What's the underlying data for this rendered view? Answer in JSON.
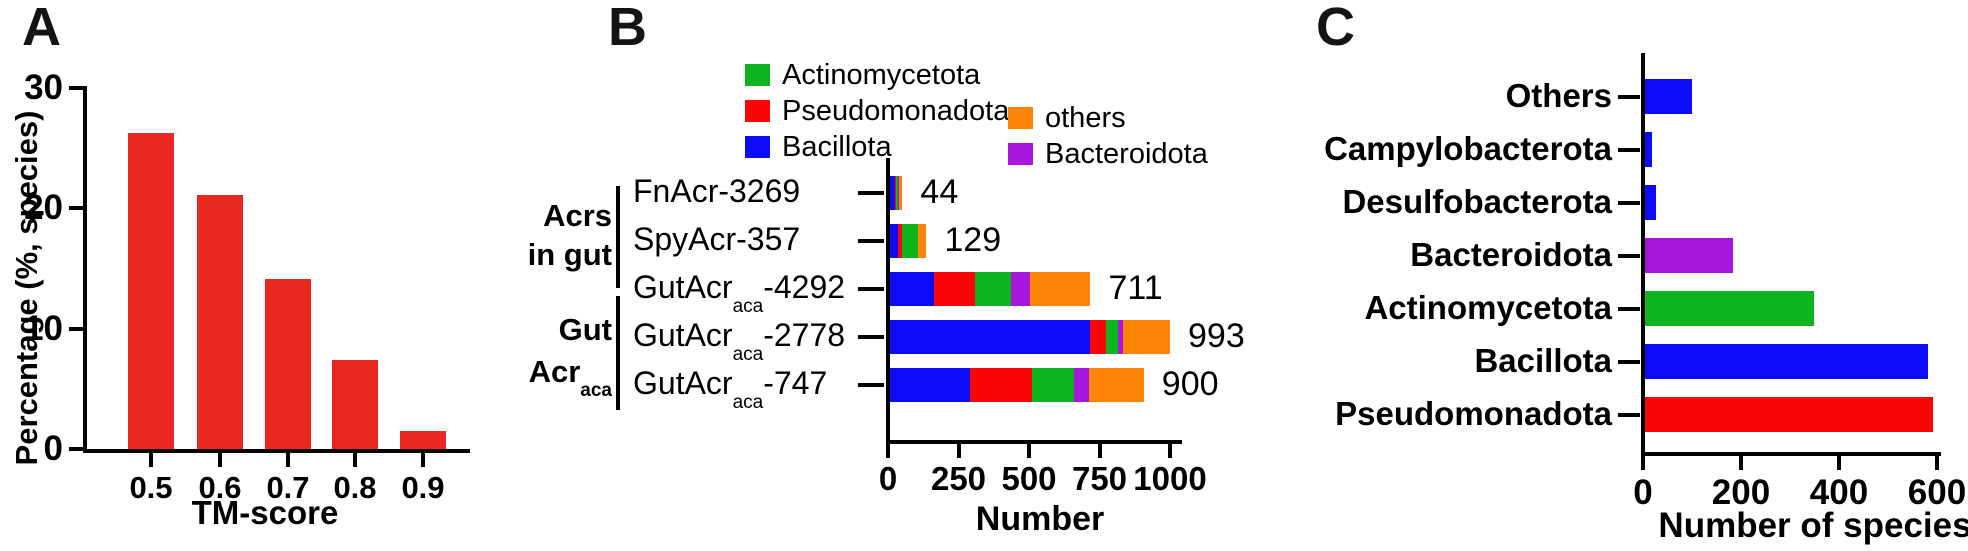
{
  "colors": {
    "blue": "#0b0bf7",
    "red": "#fa0505",
    "green": "#0db41e",
    "orange": "#fb8405",
    "purple": "#a816dd",
    "panel_a_red": "#e8281e",
    "axis": "#000000"
  },
  "chart_data": [
    {
      "panel_letter": "A",
      "type": "bar",
      "title": "",
      "xlabel": "TM-score",
      "ylabel": "Percentage (%, species)",
      "categories": [
        "0.5",
        "0.6",
        "0.7",
        "0.8",
        "0.9"
      ],
      "values": [
        26.3,
        21.1,
        14.1,
        7.4,
        1.5
      ],
      "yticks": [
        0,
        10,
        20,
        30
      ],
      "ylim": [
        0,
        30
      ],
      "bar_color": "#e8281e",
      "grid": false,
      "legend": "none"
    },
    {
      "panel_letter": "B",
      "type": "stacked-bar-horizontal",
      "title": "",
      "xlabel": "Number",
      "xticks": [
        0,
        250,
        500,
        750,
        1000
      ],
      "xlim": [
        0,
        1000
      ],
      "grid": false,
      "legend_position": "top",
      "legend": {
        "col1": [
          {
            "label": "Actinomycetota",
            "color": "#0db41e"
          },
          {
            "label": "Pseudomonadota",
            "color": "#fa0505"
          },
          {
            "label": "Bacillota",
            "color": "#0b0bf7"
          }
        ],
        "col2": [
          {
            "label": "others",
            "color": "#fb8405"
          },
          {
            "label": "Bacteroidota",
            "color": "#a816dd"
          }
        ]
      },
      "rows": [
        {
          "label_pre": "FnAcr-3269",
          "label_sub": "",
          "label_post": "",
          "total": 44
        },
        {
          "label_pre": "SpyAcr-357",
          "label_sub": "",
          "label_post": "",
          "total": 129
        },
        {
          "label_pre": "GutAcr",
          "label_sub": "aca",
          "label_post": "-4292",
          "total": 711
        },
        {
          "label_pre": "GutAcr",
          "label_sub": "aca",
          "label_post": "-2778",
          "total": 993
        },
        {
          "label_pre": "GutAcr",
          "label_sub": "aca",
          "label_post": "-747",
          "total": 900
        }
      ],
      "series": [
        {
          "name": "Bacillota",
          "color": "#0b0bf7",
          "values": [
            16,
            28,
            156,
            709,
            285
          ]
        },
        {
          "name": "Pseudomonadota",
          "color": "#fa0505",
          "values": [
            6,
            13,
            146,
            57,
            217
          ]
        },
        {
          "name": "Actinomycetota",
          "color": "#0db41e",
          "values": [
            5,
            58,
            128,
            43,
            150
          ]
        },
        {
          "name": "Bacteroidota",
          "color": "#a816dd",
          "values": [
            4,
            0,
            68,
            17,
            53
          ]
        },
        {
          "name": "others",
          "color": "#fb8405",
          "values": [
            13,
            30,
            213,
            167,
            195
          ]
        }
      ],
      "groups": [
        {
          "lines": [
            {
              "t": "Acrs",
              "sub": ""
            },
            {
              "t": "in gut",
              "sub": ""
            }
          ],
          "rows": [
            0,
            1
          ]
        },
        {
          "lines": [
            {
              "t": "Gut",
              "sub": ""
            },
            {
              "t": "Acr",
              "sub": "aca"
            }
          ],
          "rows": [
            2,
            3,
            4
          ]
        }
      ]
    },
    {
      "panel_letter": "C",
      "type": "bar-horizontal",
      "title": "",
      "xlabel": "Number of species",
      "xticks": [
        0,
        200,
        400,
        600
      ],
      "xlim": [
        0,
        600
      ],
      "grid": false,
      "categories": [
        "Others",
        "Campylobacterota",
        "Desulfobacterota",
        "Bacteroidota",
        "Actinomycetota",
        "Bacillota",
        "Pseudomonadota"
      ],
      "values": [
        95,
        14,
        22,
        180,
        345,
        578,
        588
      ],
      "bar_colors": [
        "#0b0bf7",
        "#0b0bf7",
        "#0b0bf7",
        "#a816dd",
        "#0db41e",
        "#0b0bf7",
        "#fa0505"
      ]
    }
  ]
}
